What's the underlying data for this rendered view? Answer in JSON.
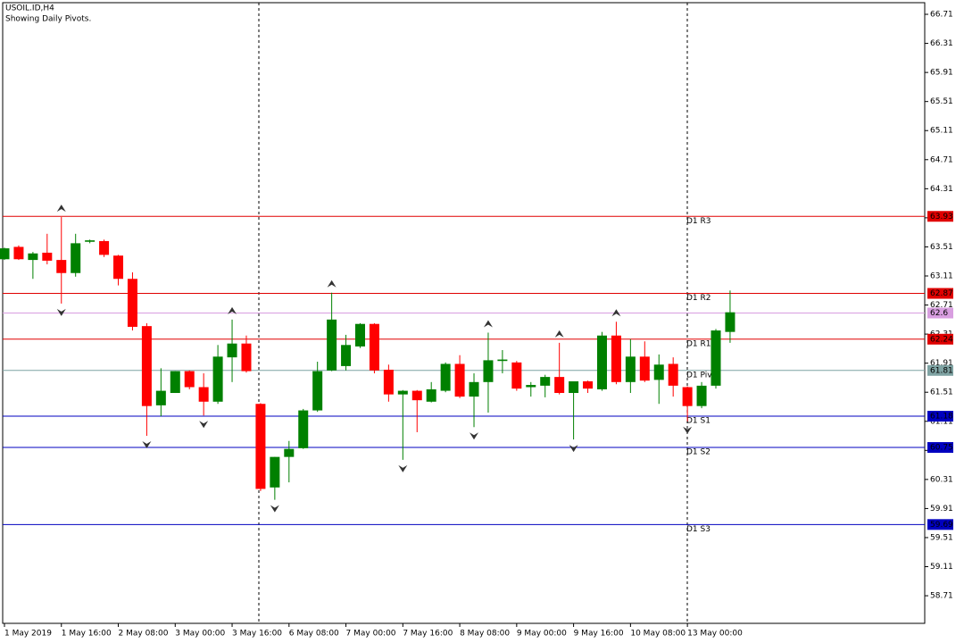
{
  "chart_data": {
    "type": "candlestick",
    "title": "USOIL.ID,H4",
    "subtitle": "Showing Daily Pivots.",
    "categories": [
      "1 May 2019",
      null,
      null,
      null,
      "1 May 16:00",
      null,
      null,
      null,
      "2 May 08:00",
      null,
      null,
      null,
      "3 May 00:00",
      null,
      null,
      null,
      "3 May 16:00",
      null,
      null,
      null,
      "6 May 08:00",
      null,
      null,
      null,
      "7 May 00:00",
      null,
      null,
      null,
      "7 May 16:00",
      null,
      null,
      null,
      "8 May 08:00",
      null,
      null,
      null,
      "9 May 00:00",
      null,
      null,
      null,
      "9 May 16:00",
      null,
      null,
      null,
      "10 May 08:00",
      null,
      null,
      null,
      "13 May 00:00",
      null,
      null,
      null
    ],
    "open": [
      63.34,
      63.51,
      63.33,
      63.43,
      63.33,
      63.15,
      63.58,
      63.59,
      63.39,
      63.07,
      62.42,
      61.33,
      61.5,
      61.8,
      61.58,
      61.38,
      61.99,
      62.18,
      61.35,
      60.2,
      60.62,
      60.74,
      61.26,
      61.81,
      61.87,
      62.14,
      62.45,
      61.82,
      61.48,
      61.53,
      61.38,
      61.53,
      61.9,
      61.45,
      61.65,
      61.94,
      61.92,
      61.58,
      61.6,
      61.72,
      61.5,
      61.66,
      61.55,
      62.29,
      61.65,
      62.0,
      61.68,
      61.9,
      61.58,
      61.32,
      61.6,
      62.34
    ],
    "high": [
      63.5,
      63.53,
      63.44,
      63.69,
      63.92,
      63.69,
      63.61,
      63.61,
      63.4,
      63.16,
      62.46,
      61.84,
      61.8,
      61.81,
      61.77,
      62.16,
      62.51,
      62.29,
      61.36,
      60.62,
      60.84,
      61.28,
      61.93,
      62.88,
      62.3,
      62.46,
      62.46,
      61.89,
      61.54,
      61.54,
      61.65,
      61.92,
      62.02,
      61.77,
      62.33,
      62.09,
      61.94,
      61.65,
      61.75,
      62.19,
      61.66,
      61.67,
      62.34,
      62.48,
      62.24,
      62.21,
      62.03,
      61.99,
      61.59,
      61.65,
      62.38,
      62.91
    ],
    "low": [
      63.33,
      63.33,
      63.07,
      63.27,
      62.73,
      63.1,
      63.56,
      63.37,
      62.98,
      62.36,
      60.91,
      61.18,
      61.5,
      61.55,
      61.19,
      61.35,
      61.65,
      61.78,
      60.15,
      60.03,
      60.27,
      60.73,
      61.24,
      61.8,
      61.81,
      62.12,
      61.77,
      61.38,
      60.58,
      60.96,
      61.37,
      61.51,
      61.43,
      61.03,
      61.23,
      61.77,
      61.53,
      61.45,
      61.44,
      61.48,
      60.86,
      61.5,
      61.53,
      61.62,
      61.5,
      61.65,
      61.35,
      61.45,
      61.11,
      61.29,
      61.56,
      62.19
    ],
    "close": [
      63.49,
      63.34,
      63.42,
      63.32,
      63.15,
      63.56,
      63.6,
      63.4,
      63.07,
      62.41,
      61.32,
      61.53,
      61.8,
      61.58,
      61.38,
      62.0,
      62.18,
      61.8,
      60.18,
      60.62,
      60.73,
      61.26,
      61.8,
      62.51,
      62.16,
      62.45,
      61.81,
      61.48,
      61.53,
      61.4,
      61.55,
      61.9,
      61.45,
      61.65,
      61.95,
      61.96,
      61.56,
      61.61,
      61.72,
      61.5,
      61.66,
      61.56,
      62.29,
      61.65,
      62.0,
      61.67,
      61.89,
      61.6,
      61.32,
      61.6,
      62.36,
      62.61
    ],
    "up_color": "#008000",
    "down_color": "#ff0000",
    "fractal_up": [
      4,
      16,
      23,
      34,
      39,
      43
    ],
    "fractal_down": [
      4,
      10,
      14,
      19,
      28,
      33,
      40,
      48
    ],
    "levels": [
      {
        "name": "D1 R3",
        "value": 63.93,
        "color": "#e00000"
      },
      {
        "name": "D1 R2",
        "value": 62.87,
        "color": "#e00000"
      },
      {
        "value": 62.6,
        "color": "#d89ee0"
      },
      {
        "name": "D1 R1",
        "value": 62.24,
        "color": "#e00000"
      },
      {
        "name": "D1 Pivot",
        "value": 61.81,
        "color": "#7fa3a3"
      },
      {
        "name": "D1 S1",
        "value": 61.18,
        "color": "#0000c0"
      },
      {
        "name": "D1 S2",
        "value": 60.75,
        "color": "#0000c0"
      },
      {
        "name": "D1 S3",
        "value": 59.69,
        "color": "#0000c0"
      }
    ],
    "ylim": [
      58.33,
      66.87
    ],
    "yticks": [
      66.71,
      66.31,
      65.91,
      65.51,
      65.11,
      64.71,
      64.31,
      63.91,
      63.51,
      63.11,
      62.71,
      62.31,
      61.91,
      61.51,
      61.11,
      60.71,
      60.31,
      59.91,
      59.51,
      59.11,
      58.71
    ]
  }
}
